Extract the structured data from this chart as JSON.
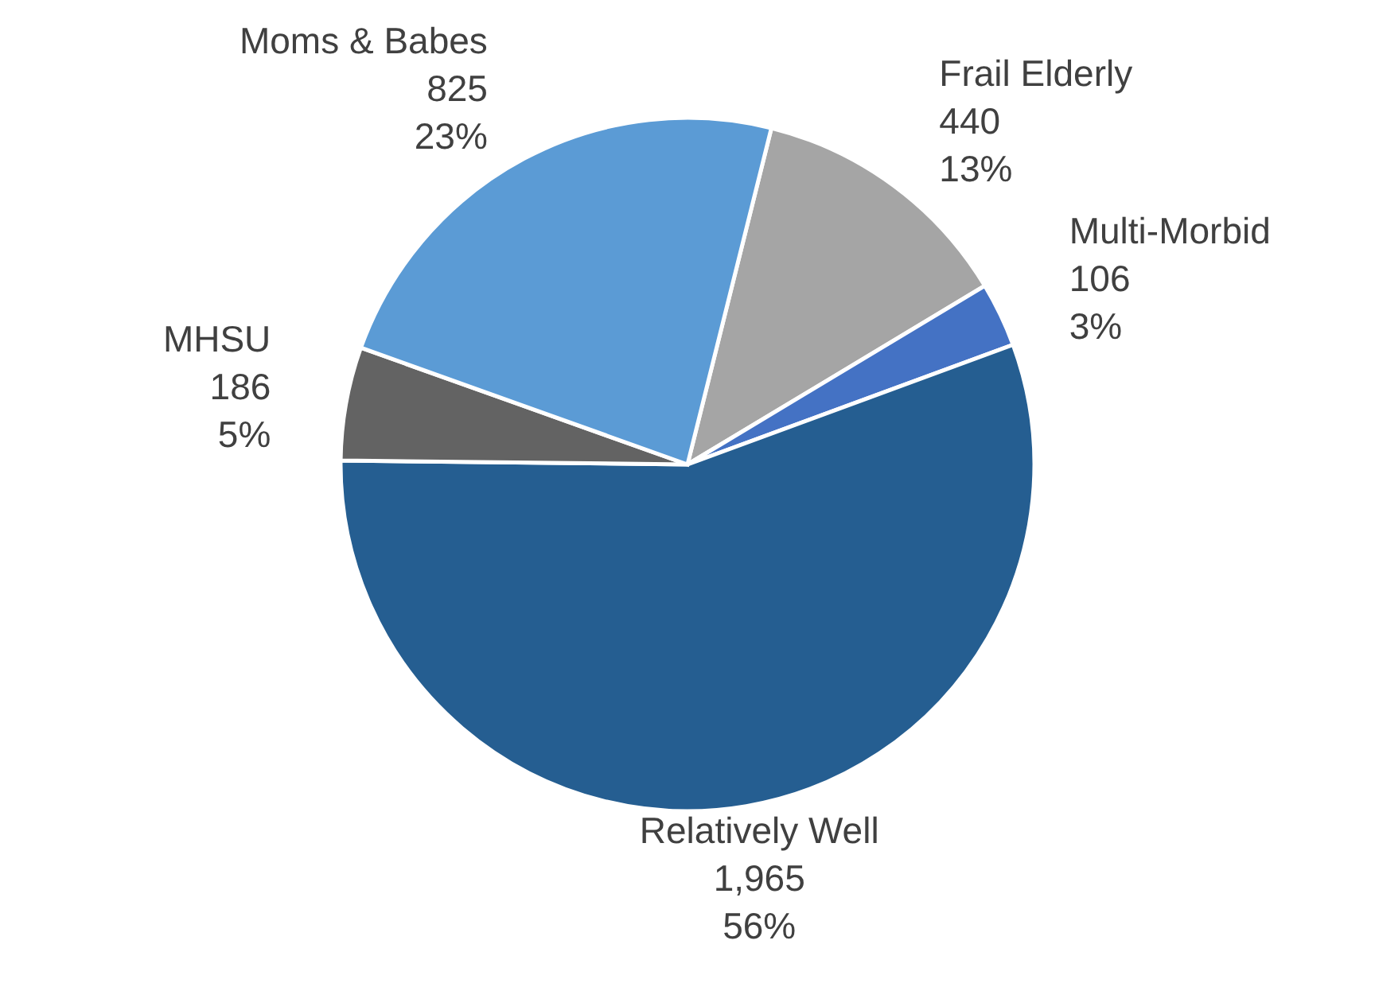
{
  "chart_data": {
    "type": "pie",
    "categories": [
      "Frail Elderly",
      "Multi-Morbid",
      "Relatively Well",
      "MHSU",
      "Moms & Babes"
    ],
    "values": [
      440,
      106,
      1965,
      186,
      825
    ],
    "value_labels": [
      "440\n13%",
      "106\n3%",
      "1,965\n56%",
      "186\n5%",
      "825\n23%"
    ],
    "colors": [
      "#a5a5a5",
      "#4472c4",
      "#255e91",
      "#636363",
      "#5b9bd5"
    ]
  }
}
